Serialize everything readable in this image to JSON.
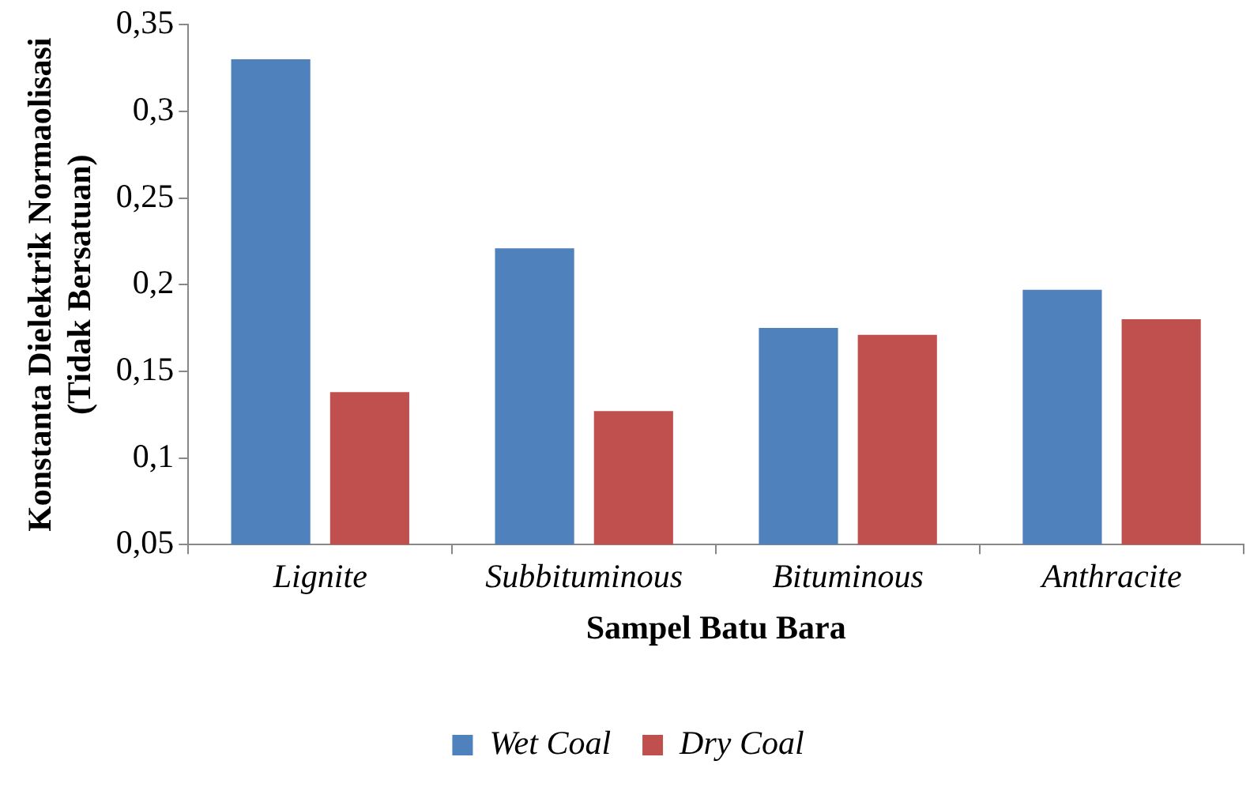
{
  "chart_data": {
    "type": "bar",
    "xlabel": "Sampel Batu Bara",
    "ylabel": "Konstanta Dielektrik Normaolisasi\n(Tidak Bersatuan)",
    "categories": [
      "Lignite",
      "Subbituminous",
      "Bituminous",
      "Anthracite"
    ],
    "series": [
      {
        "name": "Wet Coal",
        "color": "#4f81bd",
        "values": [
          0.33,
          0.221,
          0.175,
          0.197
        ]
      },
      {
        "name": "Dry Coal",
        "color": "#c0504d",
        "values": [
          0.138,
          0.127,
          0.171,
          0.18
        ]
      }
    ],
    "ylim": [
      0.05,
      0.35
    ],
    "yticks": [
      {
        "value": 0.05,
        "label": "0,05"
      },
      {
        "value": 0.1,
        "label": "0,1"
      },
      {
        "value": 0.15,
        "label": "0,15"
      },
      {
        "value": 0.2,
        "label": "0,2"
      },
      {
        "value": 0.25,
        "label": "0,25"
      },
      {
        "value": 0.3,
        "label": "0,3"
      },
      {
        "value": 0.35,
        "label": "0,35"
      }
    ],
    "grid": false,
    "legend": "bottom"
  }
}
